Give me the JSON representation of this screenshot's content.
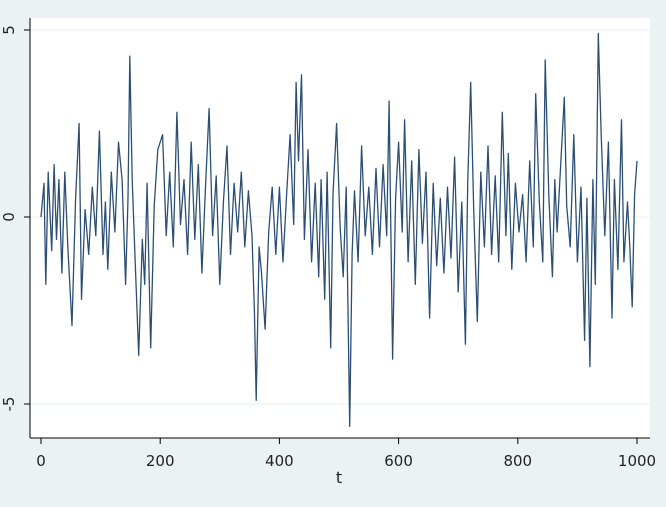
{
  "chart_data": {
    "type": "line",
    "title": "",
    "xlabel": "t",
    "ylabel": "",
    "xlim": [
      0,
      1000
    ],
    "ylim": [
      -5.8,
      5.3
    ],
    "xticks": [
      0,
      200,
      400,
      600,
      800,
      1000
    ],
    "xtick_labels": [
      "0",
      "200",
      "400",
      "600",
      "800",
      "1000"
    ],
    "yticks": [
      -5,
      0,
      5
    ],
    "ytick_labels": [
      "-5",
      "0",
      "5"
    ],
    "grid": "horizontal",
    "legend": "none",
    "series": [
      {
        "color": "#2b4f74",
        "points": [
          [
            0,
            0.0
          ],
          [
            5,
            0.9
          ],
          [
            8,
            -1.8
          ],
          [
            12,
            1.2
          ],
          [
            18,
            -0.9
          ],
          [
            22,
            1.4
          ],
          [
            26,
            -0.6
          ],
          [
            30,
            1.0
          ],
          [
            35,
            -1.5
          ],
          [
            40,
            1.2
          ],
          [
            45,
            -0.8
          ],
          [
            52,
            -2.9
          ],
          [
            58,
            0.5
          ],
          [
            64,
            2.5
          ],
          [
            68,
            -2.2
          ],
          [
            74,
            0.2
          ],
          [
            80,
            -1.0
          ],
          [
            86,
            0.8
          ],
          [
            92,
            -0.5
          ],
          [
            98,
            2.3
          ],
          [
            104,
            -1.0
          ],
          [
            108,
            0.4
          ],
          [
            112,
            -1.4
          ],
          [
            118,
            1.2
          ],
          [
            124,
            -0.4
          ],
          [
            130,
            2.0
          ],
          [
            136,
            1.0
          ],
          [
            142,
            -1.8
          ],
          [
            146,
            0.5
          ],
          [
            149,
            4.3
          ],
          [
            153,
            1.0
          ],
          [
            158,
            -1.2
          ],
          [
            164,
            -3.7
          ],
          [
            170,
            -0.6
          ],
          [
            174,
            -1.8
          ],
          [
            178,
            0.9
          ],
          [
            184,
            -3.5
          ],
          [
            190,
            0.3
          ],
          [
            196,
            1.8
          ],
          [
            204,
            2.2
          ],
          [
            210,
            -0.5
          ],
          [
            216,
            1.2
          ],
          [
            222,
            -0.8
          ],
          [
            228,
            2.8
          ],
          [
            234,
            -0.2
          ],
          [
            240,
            1.0
          ],
          [
            246,
            -1.0
          ],
          [
            252,
            2.0
          ],
          [
            258,
            -0.6
          ],
          [
            264,
            1.4
          ],
          [
            270,
            -1.5
          ],
          [
            276,
            0.8
          ],
          [
            282,
            2.9
          ],
          [
            288,
            -0.5
          ],
          [
            294,
            1.1
          ],
          [
            300,
            -1.8
          ],
          [
            306,
            0.4
          ],
          [
            312,
            1.9
          ],
          [
            318,
            -1.0
          ],
          [
            324,
            0.9
          ],
          [
            330,
            -0.4
          ],
          [
            336,
            1.2
          ],
          [
            342,
            -0.8
          ],
          [
            348,
            0.7
          ],
          [
            354,
            -0.5
          ],
          [
            358,
            -2.5
          ],
          [
            361,
            -4.9
          ],
          [
            366,
            -0.8
          ],
          [
            370,
            -1.5
          ],
          [
            376,
            -3.0
          ],
          [
            382,
            -0.4
          ],
          [
            388,
            0.8
          ],
          [
            394,
            -1.0
          ],
          [
            400,
            0.8
          ],
          [
            406,
            -1.2
          ],
          [
            412,
            0.6
          ],
          [
            418,
            2.2
          ],
          [
            424,
            -0.2
          ],
          [
            428,
            3.6
          ],
          [
            432,
            1.5
          ],
          [
            437,
            3.8
          ],
          [
            442,
            -0.6
          ],
          [
            448,
            1.8
          ],
          [
            454,
            -1.2
          ],
          [
            460,
            0.9
          ],
          [
            466,
            -1.6
          ],
          [
            470,
            1.0
          ],
          [
            476,
            -2.2
          ],
          [
            480,
            1.2
          ],
          [
            486,
            -3.5
          ],
          [
            490,
            0.6
          ],
          [
            496,
            2.5
          ],
          [
            502,
            -0.3
          ],
          [
            507,
            -1.6
          ],
          [
            512,
            0.8
          ],
          [
            516,
            -3.4
          ],
          [
            518,
            -5.6
          ],
          [
            522,
            -1.0
          ],
          [
            526,
            0.7
          ],
          [
            532,
            -1.2
          ],
          [
            538,
            1.9
          ],
          [
            544,
            -0.5
          ],
          [
            550,
            0.8
          ],
          [
            556,
            -1.0
          ],
          [
            562,
            1.3
          ],
          [
            568,
            -0.8
          ],
          [
            574,
            1.4
          ],
          [
            580,
            -0.5
          ],
          [
            584,
            3.1
          ],
          [
            590,
            -3.8
          ],
          [
            595,
            0.5
          ],
          [
            600,
            2.0
          ],
          [
            606,
            -0.4
          ],
          [
            610,
            2.6
          ],
          [
            616,
            -1.2
          ],
          [
            622,
            1.5
          ],
          [
            628,
            -1.8
          ],
          [
            634,
            1.8
          ],
          [
            640,
            -0.7
          ],
          [
            646,
            1.2
          ],
          [
            652,
            -2.7
          ],
          [
            658,
            0.9
          ],
          [
            664,
            -1.3
          ],
          [
            670,
            0.5
          ],
          [
            676,
            -1.5
          ],
          [
            682,
            0.8
          ],
          [
            688,
            -1.1
          ],
          [
            694,
            1.6
          ],
          [
            700,
            -2.0
          ],
          [
            706,
            0.4
          ],
          [
            712,
            -3.4
          ],
          [
            716,
            0.9
          ],
          [
            721,
            3.6
          ],
          [
            726,
            0.2
          ],
          [
            732,
            -2.8
          ],
          [
            738,
            1.2
          ],
          [
            744,
            -0.8
          ],
          [
            750,
            1.9
          ],
          [
            756,
            -1.0
          ],
          [
            762,
            1.1
          ],
          [
            768,
            -1.2
          ],
          [
            774,
            2.8
          ],
          [
            780,
            -0.5
          ],
          [
            784,
            1.7
          ],
          [
            790,
            -1.4
          ],
          [
            796,
            0.9
          ],
          [
            802,
            -0.4
          ],
          [
            808,
            0.6
          ],
          [
            814,
            -1.2
          ],
          [
            820,
            1.5
          ],
          [
            826,
            -0.8
          ],
          [
            830,
            3.3
          ],
          [
            836,
            0.4
          ],
          [
            842,
            -1.2
          ],
          [
            846,
            4.2
          ],
          [
            852,
            0.6
          ],
          [
            858,
            -1.6
          ],
          [
            862,
            1.0
          ],
          [
            866,
            -0.4
          ],
          [
            872,
            1.4
          ],
          [
            878,
            3.2
          ],
          [
            882,
            0.3
          ],
          [
            888,
            -0.8
          ],
          [
            894,
            2.2
          ],
          [
            900,
            -1.2
          ],
          [
            906,
            0.8
          ],
          [
            912,
            -3.3
          ],
          [
            916,
            0.5
          ],
          [
            921,
            -4.0
          ],
          [
            926,
            1.0
          ],
          [
            930,
            -1.8
          ],
          [
            935,
            4.9
          ],
          [
            940,
            2.2
          ],
          [
            946,
            -0.5
          ],
          [
            952,
            2.0
          ],
          [
            958,
            -2.7
          ],
          [
            962,
            1.0
          ],
          [
            968,
            -1.4
          ],
          [
            974,
            2.6
          ],
          [
            978,
            -1.2
          ],
          [
            984,
            0.4
          ],
          [
            988,
            -0.8
          ],
          [
            992,
            -2.4
          ],
          [
            996,
            0.6
          ],
          [
            1000,
            1.5
          ]
        ]
      }
    ]
  },
  "colors": {
    "figure_background": "#eaf2f3",
    "plot_background": "#ffffff",
    "gridline": "#eaf2f3",
    "line": "#2b4f74",
    "axis": "#000000"
  }
}
